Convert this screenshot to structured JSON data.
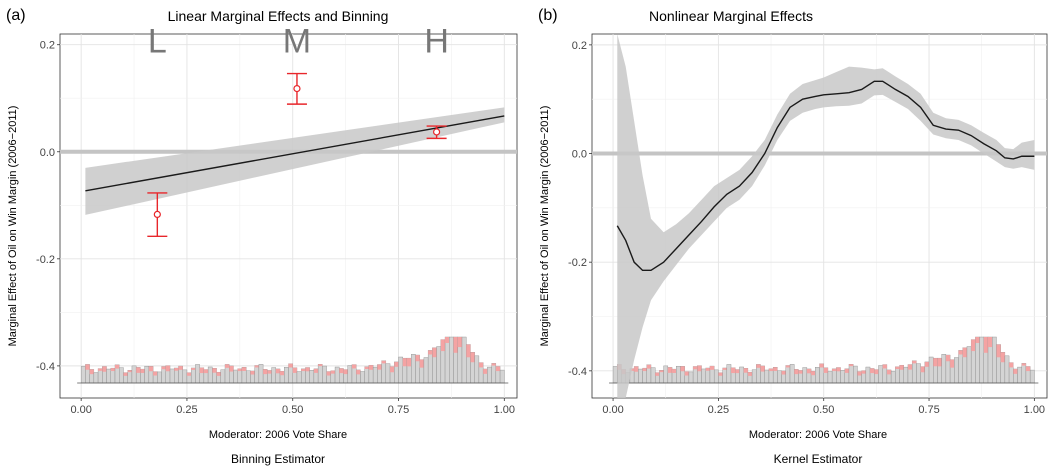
{
  "chart_data": [
    {
      "panel_label": "(a)",
      "type": "line",
      "title": "Linear Marginal Effects and Binning",
      "xlabel": "Moderator: 2006 Vote Share",
      "ylabel": "Marginal Effect of Oil on Win Margin (2006−2011)",
      "subtitle": "Binning Estimator",
      "xlim": [
        -0.05,
        1.03
      ],
      "ylim": [
        -0.46,
        0.22
      ],
      "x_ticks": [
        "0.00",
        "0.25",
        "0.50",
        "0.75",
        "1.00"
      ],
      "y_ticks": [
        "-0.4",
        "-0.2",
        "0.0",
        "0.2"
      ],
      "grid": true,
      "reference_line_y": 0,
      "colors": {
        "line": "#1a1a1a",
        "band": "#c8c8c8",
        "bins": "#e8262b",
        "hist": "#b3b3b3",
        "hist_red": "#f4a3a3"
      },
      "series": [
        {
          "x": [
            0.01,
            1.0
          ],
          "y": [
            -0.073,
            0.067
          ],
          "lower": [
            -0.118,
            0.055
          ],
          "upper": [
            -0.03,
            0.083
          ]
        }
      ],
      "bins": [
        {
          "label": "L",
          "x": 0.18,
          "y": -0.117,
          "lower": -0.158,
          "upper": -0.077
        },
        {
          "label": "M",
          "x": 0.51,
          "y": 0.118,
          "lower": 0.089,
          "upper": 0.146
        },
        {
          "label": "H",
          "x": 0.84,
          "y": 0.037,
          "lower": 0.025,
          "upper": 0.048
        }
      ]
    },
    {
      "panel_label": "(b)",
      "type": "line",
      "title": "Nonlinear Marginal Effects",
      "xlabel": "Moderator: 2006 Vote Share",
      "ylabel": "Marginal Effect of Oil on Win Margin (2006−2011)",
      "subtitle": "Kernel Estimator",
      "xlim": [
        -0.05,
        1.03
      ],
      "ylim": [
        -0.45,
        0.22
      ],
      "x_ticks": [
        "0.00",
        "0.25",
        "0.50",
        "0.75",
        "1.00"
      ],
      "y_ticks": [
        "-0.4",
        "-0.2",
        "0.0",
        "0.2"
      ],
      "grid": true,
      "reference_line_y": 0,
      "colors": {
        "line": "#1a1a1a",
        "band": "#c8c8c8",
        "hist": "#b3b3b3",
        "hist_red": "#f4a3a3"
      },
      "series": [
        {
          "x": [
            0.01,
            0.03,
            0.05,
            0.07,
            0.09,
            0.12,
            0.15,
            0.18,
            0.21,
            0.24,
            0.27,
            0.3,
            0.33,
            0.36,
            0.39,
            0.42,
            0.45,
            0.48,
            0.5,
            0.53,
            0.56,
            0.59,
            0.62,
            0.64,
            0.67,
            0.7,
            0.73,
            0.76,
            0.79,
            0.82,
            0.85,
            0.88,
            0.91,
            0.93,
            0.95,
            0.97,
            1.0
          ],
          "y": [
            -0.133,
            -0.16,
            -0.2,
            -0.215,
            -0.215,
            -0.2,
            -0.175,
            -0.15,
            -0.125,
            -0.098,
            -0.075,
            -0.06,
            -0.035,
            0.0,
            0.048,
            0.085,
            0.1,
            0.105,
            0.108,
            0.11,
            0.112,
            0.118,
            0.133,
            0.133,
            0.118,
            0.105,
            0.085,
            0.052,
            0.045,
            0.043,
            0.033,
            0.018,
            0.005,
            -0.008,
            -0.01,
            -0.005,
            -0.005
          ],
          "lower": [
            -0.5,
            -0.45,
            -0.38,
            -0.32,
            -0.27,
            -0.235,
            -0.205,
            -0.175,
            -0.15,
            -0.125,
            -0.1,
            -0.085,
            -0.06,
            -0.022,
            0.025,
            0.06,
            0.075,
            0.082,
            0.085,
            0.087,
            0.088,
            0.092,
            0.107,
            0.108,
            0.095,
            0.082,
            0.06,
            0.035,
            0.028,
            0.025,
            0.015,
            0.0,
            -0.015,
            -0.025,
            -0.028,
            -0.025,
            -0.03
          ],
          "upper": [
            0.22,
            0.16,
            0.06,
            -0.04,
            -0.12,
            -0.145,
            -0.13,
            -0.11,
            -0.085,
            -0.06,
            -0.045,
            -0.03,
            -0.005,
            0.025,
            0.072,
            0.11,
            0.128,
            0.135,
            0.14,
            0.15,
            0.16,
            0.158,
            0.155,
            0.157,
            0.142,
            0.128,
            0.11,
            0.075,
            0.065,
            0.062,
            0.052,
            0.038,
            0.025,
            0.01,
            0.008,
            0.02,
            0.025
          ]
        }
      ]
    }
  ]
}
